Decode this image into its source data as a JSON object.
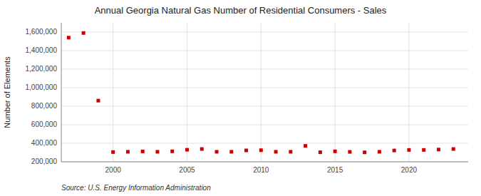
{
  "chart_data": {
    "type": "scatter",
    "title": "Annual Georgia Natural Gas Number of Residential Consumers - Sales",
    "ylabel": "Number of Elements",
    "source": "Source: U.S. Energy Information Administration",
    "x": [
      1997,
      1998,
      1999,
      2000,
      2001,
      2002,
      2003,
      2004,
      2005,
      2006,
      2007,
      2008,
      2009,
      2010,
      2011,
      2012,
      2013,
      2014,
      2015,
      2016,
      2017,
      2018,
      2019,
      2020,
      2021,
      2022,
      2023
    ],
    "values": [
      1540000,
      1590000,
      860000,
      305000,
      308000,
      312000,
      308000,
      313000,
      330000,
      338000,
      308000,
      308000,
      323000,
      325000,
      308000,
      308000,
      372000,
      303000,
      313000,
      307000,
      302000,
      308000,
      322000,
      328000,
      328000,
      332000,
      338000
    ],
    "color": "#cc0000",
    "marker": "square",
    "xlim": [
      1996.5,
      2024
    ],
    "xticks": [
      2000,
      2005,
      2010,
      2015,
      2020
    ],
    "ylim": [
      200000,
      1700000
    ],
    "yticks": [
      {
        "value": 200000,
        "label": "200,000"
      },
      {
        "value": 400000,
        "label": "400,000"
      },
      {
        "value": 600000,
        "label": "600,000"
      },
      {
        "value": 800000,
        "label": "800,000"
      },
      {
        "value": 1000000,
        "label": "1,000,000"
      },
      {
        "value": 1200000,
        "label": "1,200,000"
      },
      {
        "value": 1400000,
        "label": "1,400,000"
      },
      {
        "value": 1600000,
        "label": "1,600,000"
      }
    ],
    "grid": true
  }
}
